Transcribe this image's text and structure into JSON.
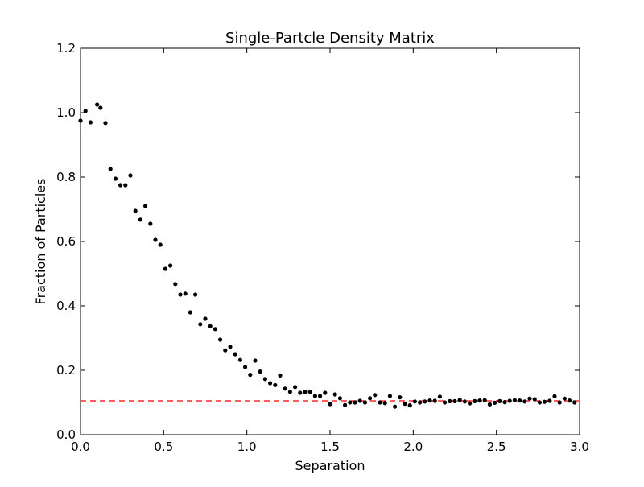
{
  "chart_data": {
    "type": "scatter",
    "title": "Single-Partcle Density Matrix",
    "xlabel": "Separation",
    "ylabel": "Fraction of Particles",
    "xlim": [
      0.0,
      3.0
    ],
    "ylim": [
      0.0,
      1.2
    ],
    "xticks": [
      "0.0",
      "0.5",
      "1.0",
      "1.5",
      "2.0",
      "2.5",
      "3.0"
    ],
    "yticks": [
      "0.0",
      "0.2",
      "0.4",
      "0.6",
      "0.8",
      "1.0",
      "1.2"
    ],
    "grid": false,
    "legend": "none",
    "reference_line": {
      "style": "dashed",
      "color": "#ff0000",
      "y": 0.105
    },
    "series": [
      {
        "marker_color": "#000000",
        "x": [
          0.0,
          0.03,
          0.06,
          0.1,
          0.12,
          0.15,
          0.18,
          0.21,
          0.24,
          0.27,
          0.3,
          0.33,
          0.36,
          0.39,
          0.42,
          0.45,
          0.48,
          0.51,
          0.54,
          0.57,
          0.6,
          0.63,
          0.66,
          0.69,
          0.72,
          0.75,
          0.78,
          0.81,
          0.84,
          0.87,
          0.9,
          0.93,
          0.96,
          0.99,
          1.02,
          1.05,
          1.08,
          1.11,
          1.14,
          1.17,
          1.2,
          1.23,
          1.26,
          1.29,
          1.32,
          1.35,
          1.38,
          1.41,
          1.44,
          1.47,
          1.5,
          1.53,
          1.56,
          1.59,
          1.62,
          1.65,
          1.68,
          1.71,
          1.74,
          1.77,
          1.8,
          1.83,
          1.86,
          1.89,
          1.92,
          1.95,
          1.98,
          2.01,
          2.04,
          2.07,
          2.1,
          2.13,
          2.16,
          2.19,
          2.22,
          2.25,
          2.28,
          2.31,
          2.34,
          2.37,
          2.4,
          2.43,
          2.46,
          2.49,
          2.52,
          2.55,
          2.58,
          2.61,
          2.64,
          2.67,
          2.7,
          2.73,
          2.76,
          2.79,
          2.82,
          2.85,
          2.88,
          2.91,
          2.94,
          2.97
        ],
        "y": [
          0.975,
          1.005,
          0.97,
          1.025,
          1.015,
          0.968,
          0.825,
          0.795,
          0.775,
          0.775,
          0.805,
          0.695,
          0.668,
          0.71,
          0.655,
          0.605,
          0.59,
          0.515,
          0.525,
          0.468,
          0.435,
          0.438,
          0.38,
          0.435,
          0.343,
          0.36,
          0.337,
          0.328,
          0.295,
          0.262,
          0.273,
          0.25,
          0.232,
          0.21,
          0.186,
          0.23,
          0.196,
          0.173,
          0.16,
          0.154,
          0.184,
          0.143,
          0.133,
          0.148,
          0.13,
          0.133,
          0.133,
          0.12,
          0.12,
          0.13,
          0.095,
          0.125,
          0.113,
          0.092,
          0.1,
          0.1,
          0.105,
          0.1,
          0.113,
          0.123,
          0.1,
          0.098,
          0.12,
          0.087,
          0.116,
          0.096,
          0.091,
          0.103,
          0.1,
          0.103,
          0.106,
          0.105,
          0.118,
          0.1,
          0.104,
          0.104,
          0.108,
          0.103,
          0.097,
          0.104,
          0.106,
          0.107,
          0.094,
          0.099,
          0.104,
          0.101,
          0.105,
          0.107,
          0.106,
          0.103,
          0.112,
          0.11,
          0.1,
          0.102,
          0.105,
          0.119,
          0.1,
          0.112,
          0.106,
          0.1
        ]
      }
    ]
  }
}
